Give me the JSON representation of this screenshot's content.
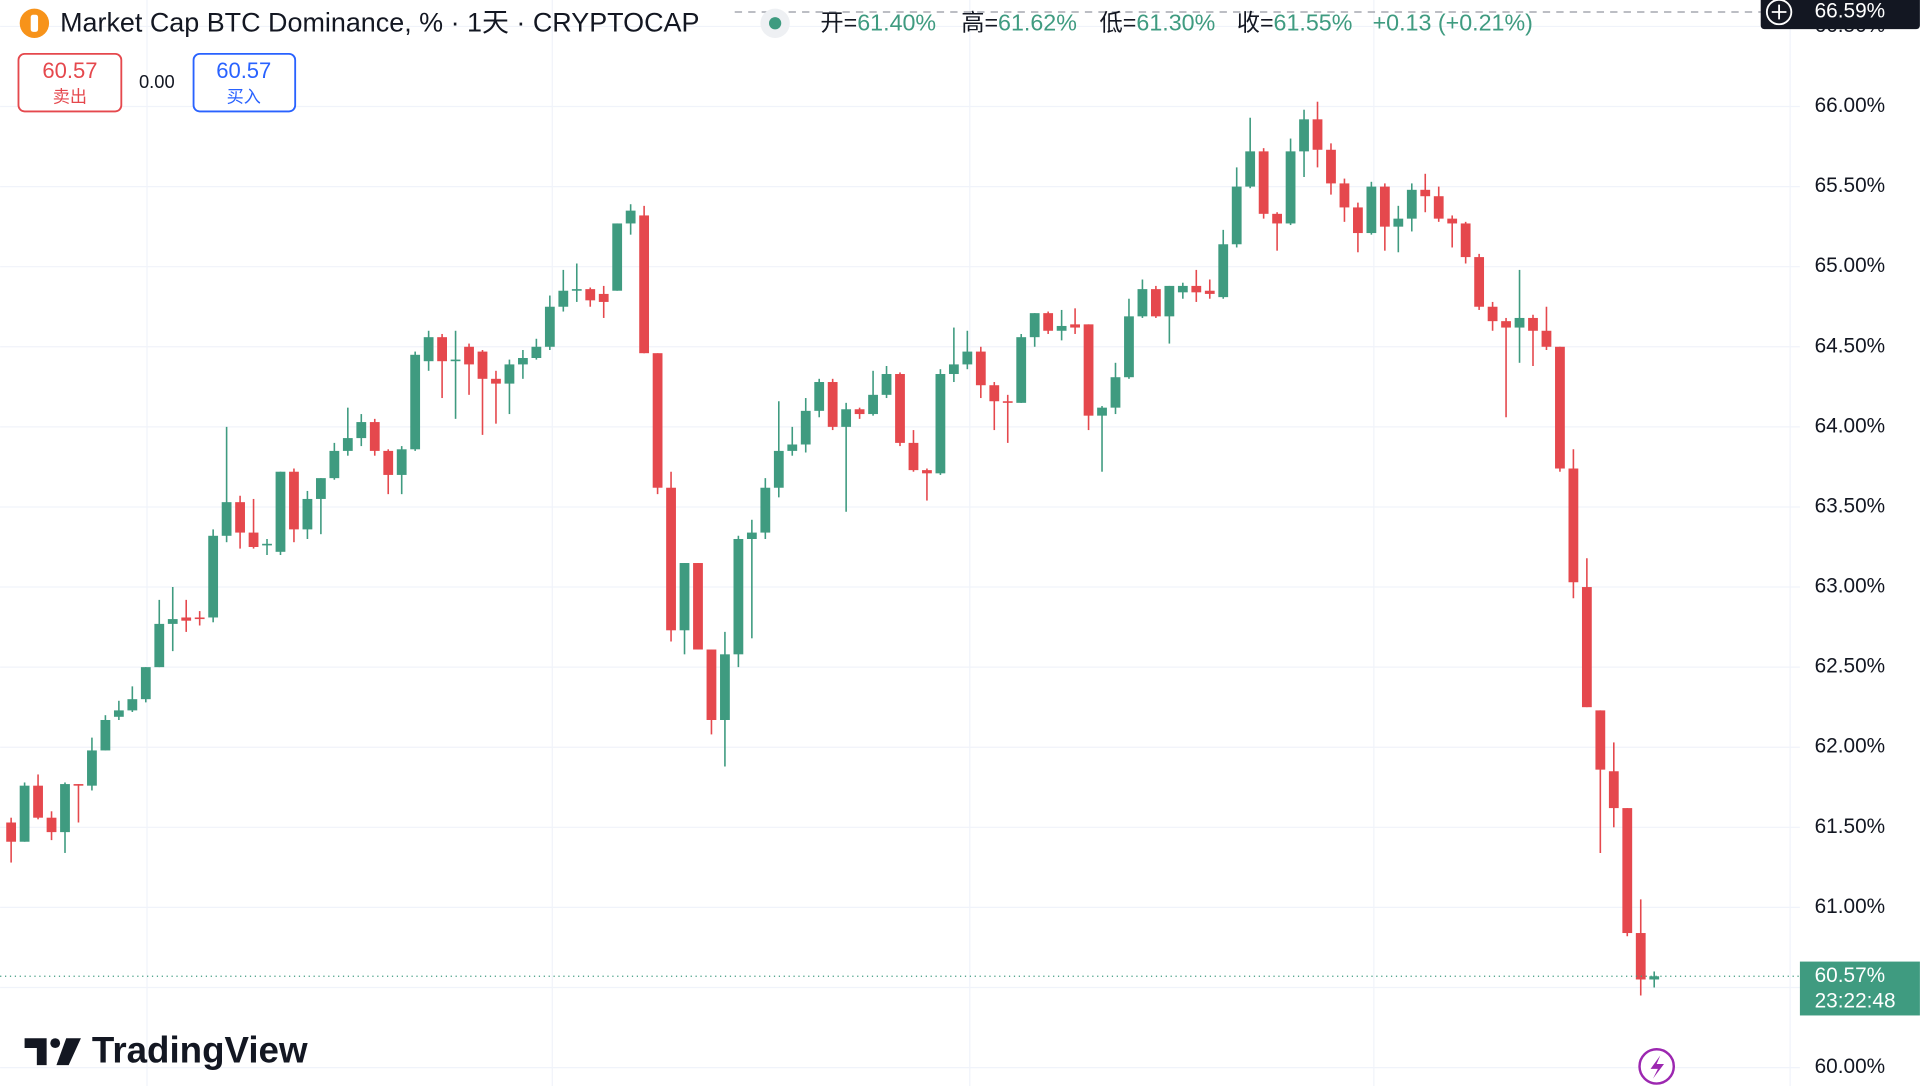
{
  "chart_data": {
    "type": "candlestick",
    "title": "Market Cap BTC Dominance, % · 1天 · CRYPTOCAP",
    "ohlc_legend": [
      {
        "key": "开=",
        "value": "61.40%"
      },
      {
        "key": "高=",
        "value": "61.62%"
      },
      {
        "key": "低=",
        "value": "61.30%"
      },
      {
        "key": "收=",
        "value": "61.55%"
      }
    ],
    "change": "+0.13 (+0.21%)",
    "sell": {
      "price": "60.57",
      "label": "卖出"
    },
    "spread": "0.00",
    "buy": {
      "price": "60.57",
      "label": "买入"
    },
    "logo": "TradingView",
    "up_color": "#3f9b80",
    "down_color": "#e5484d",
    "grid": true,
    "ylim": [
      59.885,
      66.665
    ],
    "yticks": [
      {
        "value": 60,
        "label": "60.00%"
      },
      {
        "value": 60.5,
        "label": "60.50%"
      },
      {
        "value": 61,
        "label": "61.00%"
      },
      {
        "value": 61.5,
        "label": "61.50%"
      },
      {
        "value": 62,
        "label": "62.00%"
      },
      {
        "value": 62.5,
        "label": "62.50%"
      },
      {
        "value": 63,
        "label": "63.00%"
      },
      {
        "value": 63.5,
        "label": "63.50%"
      },
      {
        "value": 64,
        "label": "64.00%"
      },
      {
        "value": 64.5,
        "label": "64.50%"
      },
      {
        "value": 65,
        "label": "65.00%"
      },
      {
        "value": 65.5,
        "label": "65.50%"
      },
      {
        "value": 66,
        "label": "66.00%"
      },
      {
        "value": 66.5,
        "label": "66.50%"
      }
    ],
    "last_price": {
      "value": 60.57,
      "label": "60.57%",
      "countdown": "23:22:48"
    },
    "crosshair_price": {
      "value": 66.59,
      "label": "66.59%"
    },
    "open": [
      61.53,
      61.41,
      61.76,
      61.56,
      61.47,
      61.77,
      61.76,
      61.98,
      62.19,
      62.23,
      62.3,
      62.5,
      62.77,
      62.81,
      62.81,
      62.81,
      63.32,
      63.53,
      63.34,
      63.26,
      63.22,
      63.72,
      63.36,
      63.55,
      63.68,
      63.85,
      63.93,
      64.03,
      63.85,
      63.7,
      63.86,
      64.41,
      64.56,
      64.41,
      64.5,
      64.47,
      64.3,
      64.27,
      64.39,
      64.43,
      64.5,
      64.75,
      64.85,
      64.86,
      64.83,
      64.85,
      65.27,
      65.32,
      64.46,
      63.62,
      62.73,
      63.15,
      62.61,
      62.17,
      62.58,
      63.3,
      63.34,
      63.62,
      63.85,
      63.89,
      64.1,
      64.28,
      64.0,
      64.11,
      64.08,
      64.2,
      64.33,
      63.9,
      63.73,
      63.71,
      64.33,
      64.39,
      64.47,
      64.26,
      64.16,
      64.15,
      64.56,
      64.71,
      64.6,
      64.64,
      64.64,
      64.07,
      64.12,
      64.31,
      64.69,
      64.86,
      64.69,
      64.84,
      64.88,
      64.85,
      64.81,
      65.14,
      65.5,
      65.72,
      65.33,
      65.27,
      65.72,
      65.92,
      65.73,
      65.52,
      65.37,
      65.21,
      65.5,
      65.25,
      65.3,
      65.48,
      65.44,
      65.3,
      65.27,
      65.06,
      64.75,
      64.66,
      64.62,
      64.68,
      64.6,
      64.5,
      63.74,
      63.0,
      62.23,
      61.85,
      61.62,
      60.84,
      60.55
    ],
    "high": [
      61.56,
      61.78,
      61.83,
      61.6,
      61.78,
      61.77,
      62.06,
      62.2,
      62.29,
      62.38,
      62.5,
      62.92,
      63.0,
      62.92,
      62.85,
      63.36,
      64.0,
      63.57,
      63.55,
      63.3,
      63.72,
      63.74,
      63.6,
      63.68,
      63.9,
      64.12,
      64.08,
      64.05,
      63.86,
      63.88,
      64.47,
      64.6,
      64.58,
      64.6,
      64.52,
      64.48,
      64.35,
      64.42,
      64.48,
      64.55,
      64.82,
      64.98,
      65.02,
      64.87,
      64.88,
      65.27,
      65.39,
      65.38,
      64.46,
      63.72,
      63.15,
      63.15,
      62.61,
      62.72,
      63.32,
      63.42,
      63.68,
      64.16,
      64.0,
      64.18,
      64.3,
      64.3,
      64.15,
      64.12,
      64.35,
      64.38,
      64.34,
      63.98,
      63.74,
      64.36,
      64.62,
      64.6,
      64.5,
      64.28,
      64.2,
      64.58,
      64.71,
      64.72,
      64.73,
      64.74,
      64.64,
      64.13,
      64.4,
      64.8,
      64.92,
      64.88,
      64.88,
      64.9,
      64.98,
      64.92,
      65.23,
      65.62,
      65.93,
      65.74,
      65.34,
      65.8,
      65.98,
      66.03,
      65.77,
      65.55,
      65.4,
      65.53,
      65.52,
      65.38,
      65.52,
      65.58,
      65.5,
      65.32,
      65.28,
      65.08,
      64.78,
      64.68,
      64.98,
      64.7,
      64.75,
      64.5,
      63.86,
      63.18,
      62.23,
      62.03,
      61.62,
      61.05,
      60.6
    ],
    "low": [
      61.28,
      61.41,
      61.55,
      61.42,
      61.34,
      61.53,
      61.73,
      61.98,
      62.17,
      62.22,
      62.28,
      62.5,
      62.6,
      62.72,
      62.76,
      62.78,
      63.28,
      63.24,
      63.24,
      63.2,
      63.2,
      63.28,
      63.3,
      63.33,
      63.67,
      63.82,
      63.88,
      63.82,
      63.58,
      63.58,
      63.85,
      64.35,
      64.18,
      64.05,
      64.2,
      63.95,
      64.02,
      64.08,
      64.3,
      64.42,
      64.48,
      64.72,
      64.78,
      64.75,
      64.68,
      64.85,
      65.2,
      64.46,
      63.58,
      62.66,
      62.58,
      62.61,
      62.08,
      61.88,
      62.5,
      62.68,
      63.3,
      63.56,
      63.82,
      63.84,
      64.06,
      63.98,
      63.47,
      64.05,
      64.07,
      64.18,
      63.88,
      63.72,
      63.54,
      63.7,
      64.28,
      64.36,
      64.18,
      63.98,
      63.9,
      64.15,
      64.5,
      64.58,
      64.54,
      64.58,
      63.98,
      63.72,
      64.08,
      64.3,
      64.68,
      64.68,
      64.52,
      64.8,
      64.78,
      64.8,
      64.8,
      65.12,
      65.49,
      65.3,
      65.1,
      65.26,
      65.56,
      65.62,
      65.45,
      65.28,
      65.09,
      65.2,
      65.1,
      65.09,
      65.22,
      65.34,
      65.28,
      65.12,
      65.02,
      64.73,
      64.6,
      64.06,
      64.4,
      64.38,
      64.48,
      63.72,
      62.93,
      62.25,
      61.34,
      61.5,
      60.82,
      60.45,
      60.5
    ],
    "close": [
      61.41,
      61.76,
      61.56,
      61.47,
      61.77,
      61.76,
      61.98,
      62.17,
      62.23,
      62.3,
      62.5,
      62.77,
      62.8,
      62.79,
      62.8,
      63.32,
      63.53,
      63.34,
      63.25,
      63.27,
      63.72,
      63.36,
      63.55,
      63.68,
      63.85,
      63.93,
      64.03,
      63.85,
      63.7,
      63.86,
      64.45,
      64.56,
      64.41,
      64.42,
      64.39,
      64.3,
      64.27,
      64.39,
      64.43,
      64.5,
      64.75,
      64.85,
      64.86,
      64.79,
      64.78,
      65.27,
      65.35,
      64.46,
      63.62,
      62.73,
      63.15,
      62.61,
      62.17,
      62.58,
      63.3,
      63.34,
      63.62,
      63.85,
      63.89,
      64.1,
      64.28,
      64.0,
      64.11,
      64.08,
      64.2,
      64.33,
      63.9,
      63.73,
      63.71,
      64.33,
      64.39,
      64.47,
      64.26,
      64.16,
      64.15,
      64.56,
      64.71,
      64.6,
      64.63,
      64.62,
      64.07,
      64.12,
      64.31,
      64.69,
      64.86,
      64.69,
      64.88,
      64.88,
      64.84,
      64.83,
      65.14,
      65.5,
      65.72,
      65.33,
      65.27,
      65.72,
      65.92,
      65.73,
      65.52,
      65.37,
      65.21,
      65.5,
      65.25,
      65.3,
      65.48,
      65.44,
      65.3,
      65.27,
      65.06,
      64.75,
      64.66,
      64.62,
      64.68,
      64.6,
      64.5,
      63.74,
      63.03,
      62.25,
      61.86,
      61.62,
      60.84,
      60.55,
      60.57
    ]
  }
}
